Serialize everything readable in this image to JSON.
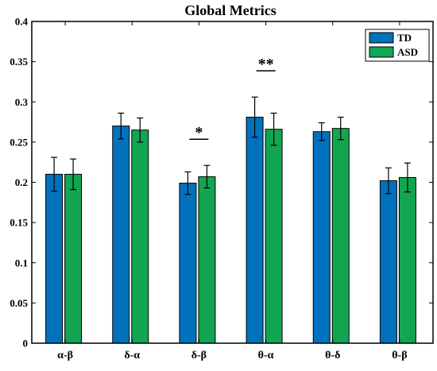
{
  "chart_data": {
    "type": "bar",
    "title": "Global Metrics",
    "xlabel": "",
    "ylabel": "",
    "ylim": [
      0,
      0.4
    ],
    "yticks": [
      0,
      0.05,
      0.1,
      0.15,
      0.2,
      0.25,
      0.3,
      0.35,
      0.4
    ],
    "ytick_labels": [
      "0",
      "0.05",
      "0.1",
      "0.15",
      "0.2",
      "0.25",
      "0.3",
      "0.35",
      "0.4"
    ],
    "categories": [
      "α-β",
      "δ-α",
      "δ-β",
      "θ-α",
      "θ-δ",
      "θ-β"
    ],
    "series": [
      {
        "name": "TD",
        "color": "#0072BD",
        "values": [
          0.21,
          0.27,
          0.199,
          0.281,
          0.263,
          0.202
        ],
        "error": [
          0.021,
          0.016,
          0.014,
          0.025,
          0.011,
          0.016
        ]
      },
      {
        "name": "ASD",
        "color": "#12A552",
        "values": [
          0.21,
          0.265,
          0.207,
          0.266,
          0.267,
          0.206
        ],
        "error": [
          0.019,
          0.015,
          0.014,
          0.02,
          0.014,
          0.018
        ]
      }
    ],
    "significance": [
      {
        "category": "δ-β",
        "label": "*"
      },
      {
        "category": "θ-α",
        "label": "**"
      }
    ],
    "legend_position": "top-right",
    "grid": false
  }
}
